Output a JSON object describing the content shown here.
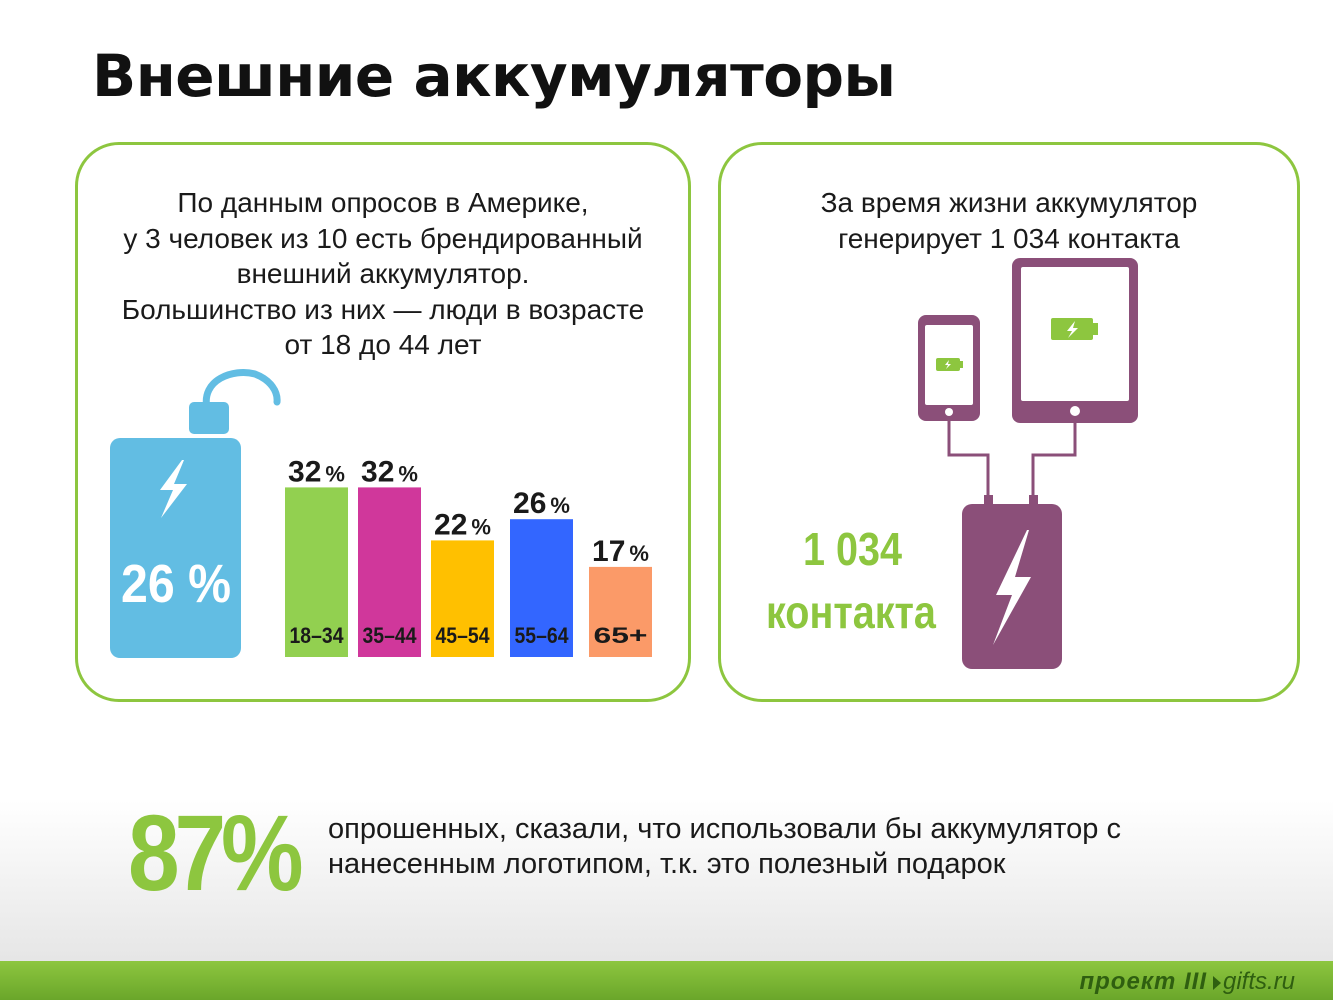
{
  "page_title": "Внешние аккумуляторы",
  "left_panel": {
    "lines": [
      "По данным опросов в Америке,",
      "у 3 человек из 10 есть брендированный",
      "внешний аккумулятор.",
      "Большинство из них — люди в возрасте",
      "от 18 до 44 лет"
    ],
    "battery_percent": "26 %"
  },
  "chart_data": {
    "type": "bar",
    "categories": [
      "18–34",
      "35–44",
      "45–54",
      "55–64",
      "65+"
    ],
    "values": [
      32,
      32,
      22,
      26,
      17
    ],
    "value_labels": [
      "32 %",
      "32 %",
      "22 %",
      "26 %",
      "17 %"
    ],
    "colors": [
      "#92d050",
      "#d0379b",
      "#ffc000",
      "#3366ff",
      "#fb9a68"
    ]
  },
  "right_panel": {
    "lines": [
      "За время жизни аккумулятор",
      "генерирует 1 034 контакта"
    ],
    "contacts_number": "1 034",
    "contacts_word": "контакта"
  },
  "stat": {
    "percent": "87%",
    "lines": [
      "опрошенных, сказали, что использовали бы аккумулятор с",
      "нанесенным логотипом, т.к. это полезный подарок"
    ]
  },
  "footer": {
    "logo": "проект III",
    "site": "gifts.ru"
  },
  "colors": {
    "accent_green": "#8dc63f",
    "battery_blue": "#62bde3",
    "device_purple": "#8b4f79"
  },
  "icons": [
    "lightning-icon",
    "battery-charge-icon",
    "phone-icon",
    "tablet-icon",
    "powerbank-icon"
  ]
}
